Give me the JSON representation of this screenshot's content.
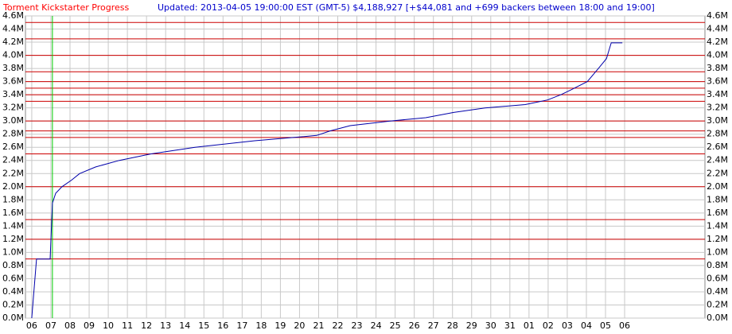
{
  "chart_data": {
    "type": "line",
    "title": "Torment Kickstarter Progress",
    "title_color": "#ff0000",
    "subtitle": "Updated: 2013-04-05 19:00:00 EST (GMT-5) $4,188,927 [+$44,081 and +699 backers between 18:00 and 19:00]",
    "subtitle_color": "#0000cc",
    "xlim": [
      -0.33,
      35.2
    ],
    "xticks": [
      {
        "value": 0,
        "label": "06"
      },
      {
        "value": 1,
        "label": "07"
      },
      {
        "value": 2,
        "label": "08"
      },
      {
        "value": 3,
        "label": "09"
      },
      {
        "value": 4,
        "label": "10"
      },
      {
        "value": 5,
        "label": "11"
      },
      {
        "value": 6,
        "label": "12"
      },
      {
        "value": 7,
        "label": "13"
      },
      {
        "value": 8,
        "label": "14"
      },
      {
        "value": 9,
        "label": "15"
      },
      {
        "value": 10,
        "label": "16"
      },
      {
        "value": 11,
        "label": "17"
      },
      {
        "value": 12,
        "label": "18"
      },
      {
        "value": 13,
        "label": "19"
      },
      {
        "value": 14,
        "label": "20"
      },
      {
        "value": 15,
        "label": "21"
      },
      {
        "value": 16,
        "label": "22"
      },
      {
        "value": 17,
        "label": "23"
      },
      {
        "value": 18,
        "label": "24"
      },
      {
        "value": 19,
        "label": "25"
      },
      {
        "value": 20,
        "label": "26"
      },
      {
        "value": 21,
        "label": "27"
      },
      {
        "value": 22,
        "label": "28"
      },
      {
        "value": 23,
        "label": "29"
      },
      {
        "value": 24,
        "label": "30"
      },
      {
        "value": 25,
        "label": "31"
      },
      {
        "value": 26,
        "label": "01"
      },
      {
        "value": 27,
        "label": "02"
      },
      {
        "value": 28,
        "label": "03"
      },
      {
        "value": 29,
        "label": "04"
      },
      {
        "value": 30,
        "label": "05"
      },
      {
        "value": 31,
        "label": "06"
      }
    ],
    "ylim": [
      0,
      4.6
    ],
    "yticks": [
      {
        "value": 0,
        "label": "0.0M"
      },
      {
        "value": 0.2,
        "label": "0.2M"
      },
      {
        "value": 0.4,
        "label": "0.4M"
      },
      {
        "value": 0.6,
        "label": "0.6M"
      },
      {
        "value": 0.8,
        "label": "0.8M"
      },
      {
        "value": 1.0,
        "label": "1.0M"
      },
      {
        "value": 1.2,
        "label": "1.2M"
      },
      {
        "value": 1.4,
        "label": "1.4M"
      },
      {
        "value": 1.6,
        "label": "1.6M"
      },
      {
        "value": 1.8,
        "label": "1.8M"
      },
      {
        "value": 2.0,
        "label": "2.0M"
      },
      {
        "value": 2.2,
        "label": "2.2M"
      },
      {
        "value": 2.4,
        "label": "2.4M"
      },
      {
        "value": 2.6,
        "label": "2.6M"
      },
      {
        "value": 2.8,
        "label": "2.8M"
      },
      {
        "value": 3.0,
        "label": "3.0M"
      },
      {
        "value": 3.2,
        "label": "3.2M"
      },
      {
        "value": 3.4,
        "label": "3.4M"
      },
      {
        "value": 3.6,
        "label": "3.6M"
      },
      {
        "value": 3.8,
        "label": "3.8M"
      },
      {
        "value": 4.0,
        "label": "4.0M"
      },
      {
        "value": 4.2,
        "label": "4.2M"
      },
      {
        "value": 4.4,
        "label": "4.4M"
      },
      {
        "value": 4.6,
        "label": "4.6M"
      }
    ],
    "grid": true,
    "goal_lines": [
      0.9,
      1.2,
      1.5,
      2.0,
      2.5,
      2.75,
      2.85,
      3.0,
      3.3,
      3.4,
      3.5,
      3.6,
      3.75,
      4.0,
      4.25,
      4.5
    ],
    "goal_color": "#cc0000",
    "marker_x": 1.08,
    "marker_color": "#00cc00",
    "series": [
      {
        "color": "#0000aa",
        "x": [
          0,
          0.25,
          0.96,
          1.08,
          1.25,
          1.58,
          2.08,
          2.5,
          3.33,
          4.58,
          6.24,
          8.53,
          11.65,
          13.73,
          14.9,
          15.6,
          16.65,
          18.73,
          20.6,
          22.06,
          23.7,
          25.8,
          26.97,
          27.67,
          28.17,
          29.05,
          29.63,
          30.05,
          30.3,
          30.88
        ],
        "values": [
          0,
          0.9,
          0.9,
          1.75,
          1.9,
          2.0,
          2.1,
          2.2,
          2.3,
          2.4,
          2.5,
          2.6,
          2.7,
          2.75,
          2.78,
          2.85,
          2.93,
          3.0,
          3.05,
          3.13,
          3.2,
          3.25,
          3.32,
          3.4,
          3.47,
          3.6,
          3.8,
          3.95,
          4.19,
          4.19
        ]
      }
    ]
  }
}
